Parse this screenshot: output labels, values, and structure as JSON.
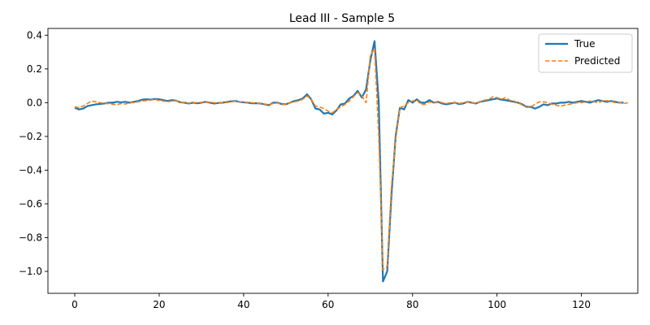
{
  "chart_data": {
    "type": "line",
    "title": "Lead III - Sample 5",
    "xlabel": "",
    "ylabel": "",
    "xlim": [
      -6.35,
      133.35
    ],
    "ylim": [
      -1.13,
      0.44
    ],
    "xticks": [
      0,
      20,
      40,
      60,
      80,
      100,
      120
    ],
    "yticks": [
      -1.0,
      -0.8,
      -0.6,
      -0.4,
      -0.2,
      0.0,
      0.2,
      0.4
    ],
    "xtick_labels": [
      "0",
      "20",
      "40",
      "60",
      "80",
      "100",
      "120"
    ],
    "ytick_labels": [
      "−1.0",
      "−0.8",
      "−0.6",
      "−0.4",
      "−0.2",
      "0.0",
      "0.2",
      "0.4"
    ],
    "grid": false,
    "legend_position": "top-right",
    "series": [
      {
        "name": "True",
        "color": "#1f77b4",
        "style": "solid",
        "values": [
          -0.03,
          -0.04,
          -0.035,
          -0.02,
          -0.015,
          -0.01,
          -0.008,
          -0.005,
          0.0,
          0.0,
          0.005,
          0.002,
          0.005,
          0.0,
          0.005,
          0.01,
          0.018,
          0.02,
          0.018,
          0.022,
          0.02,
          0.015,
          0.01,
          0.015,
          0.012,
          0.002,
          0.0,
          -0.005,
          0.0,
          -0.004,
          0.0,
          0.005,
          0.0,
          -0.005,
          -0.002,
          0.0,
          0.004,
          0.008,
          0.01,
          0.005,
          0.002,
          0.0,
          -0.004,
          -0.003,
          -0.005,
          -0.01,
          -0.015,
          0.0,
          0.0,
          -0.008,
          -0.01,
          0.0,
          0.01,
          0.015,
          0.025,
          0.05,
          0.02,
          -0.035,
          -0.04,
          -0.065,
          -0.06,
          -0.07,
          -0.045,
          -0.01,
          -0.005,
          0.025,
          0.04,
          0.07,
          0.03,
          0.08,
          0.25,
          0.365,
          0.0,
          -1.06,
          -1.0,
          -0.55,
          -0.2,
          -0.03,
          -0.04,
          0.015,
          0.0,
          0.02,
          0.0,
          0.0,
          0.015,
          0.0,
          0.005,
          -0.005,
          -0.01,
          -0.005,
          0.0,
          -0.008,
          -0.005,
          0.005,
          0.0,
          -0.005,
          0.005,
          0.01,
          0.015,
          0.02,
          0.025,
          0.018,
          0.015,
          0.01,
          0.005,
          0.0,
          -0.01,
          -0.025,
          -0.025,
          -0.035,
          -0.025,
          -0.01,
          -0.015,
          -0.005,
          -0.005,
          0.0,
          0.0,
          0.005,
          0.0,
          0.005,
          0.01,
          0.005,
          0.0,
          0.008,
          0.015,
          0.01,
          0.005,
          0.01,
          0.005,
          0.0,
          0.0
        ]
      },
      {
        "name": "Predicted",
        "color": "#ff7f0e",
        "style": "dashed",
        "values": [
          -0.025,
          -0.03,
          -0.02,
          -0.005,
          0.01,
          0.005,
          0.0,
          -0.005,
          -0.005,
          -0.01,
          -0.012,
          -0.005,
          -0.008,
          0.0,
          0.0,
          0.005,
          0.01,
          0.012,
          0.015,
          0.02,
          0.012,
          0.01,
          0.005,
          0.01,
          0.012,
          0.0,
          0.0,
          -0.002,
          0.0,
          0.0,
          0.002,
          0.005,
          0.002,
          0.0,
          -0.002,
          0.0,
          0.0,
          0.005,
          0.008,
          0.006,
          0.005,
          0.0,
          0.0,
          -0.002,
          -0.005,
          -0.008,
          -0.012,
          -0.005,
          -0.002,
          -0.01,
          -0.012,
          0.0,
          0.005,
          0.01,
          0.02,
          0.04,
          0.02,
          -0.02,
          -0.025,
          -0.035,
          -0.05,
          -0.06,
          -0.04,
          -0.025,
          -0.01,
          0.01,
          0.035,
          0.06,
          0.04,
          0.0,
          0.28,
          0.32,
          -0.2,
          -0.99,
          -0.97,
          -0.5,
          -0.22,
          -0.03,
          -0.02,
          0.0,
          0.01,
          0.015,
          -0.01,
          -0.01,
          0.005,
          0.0,
          0.008,
          0.0,
          -0.005,
          0.0,
          -0.002,
          -0.005,
          0.0,
          0.005,
          0.0,
          -0.005,
          0.005,
          0.015,
          0.02,
          0.035,
          0.03,
          0.02,
          0.03,
          0.015,
          0.01,
          0.0,
          -0.015,
          -0.02,
          -0.025,
          -0.01,
          0.005,
          0.005,
          0.0,
          -0.01,
          -0.015,
          -0.02,
          -0.015,
          -0.01,
          -0.005,
          0.0,
          0.0,
          0.005,
          0.01,
          0.005,
          0.0,
          0.01,
          0.012,
          0.008,
          0.0,
          0.0,
          -0.005,
          0.0
        ]
      }
    ]
  }
}
